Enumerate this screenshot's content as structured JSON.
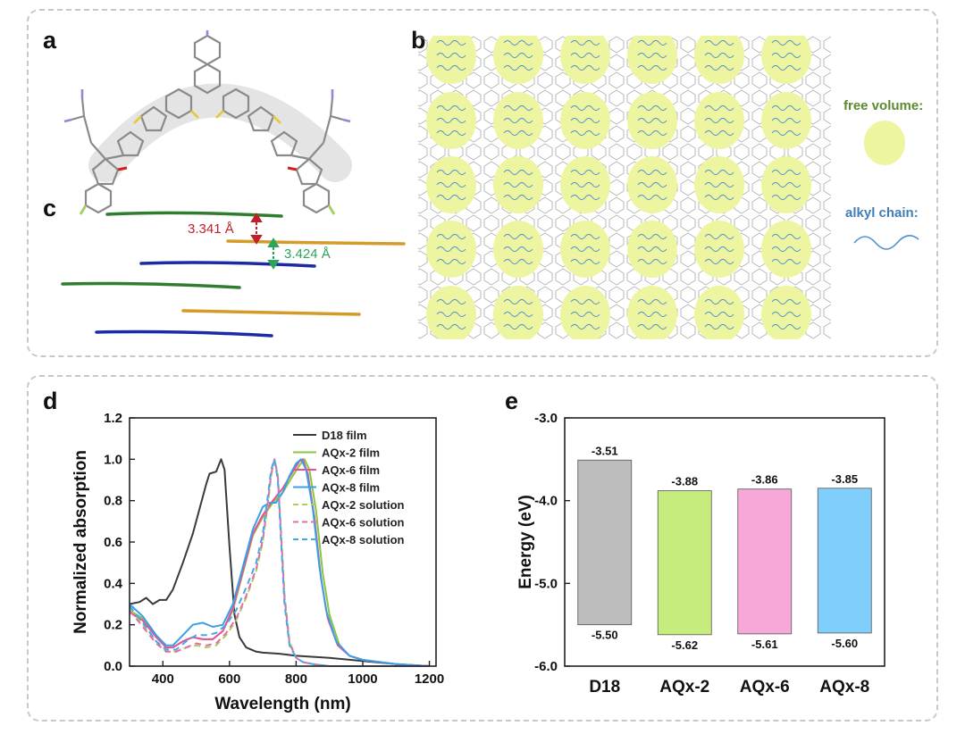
{
  "panels": {
    "a": "a",
    "b": "b",
    "c": "c",
    "d": "d",
    "e": "e"
  },
  "panel_c": {
    "dist1": "3.341 Å",
    "dist2": "3.424 Å"
  },
  "panel_b": {
    "legend_free_volume": "free volume:",
    "legend_alkyl_chain": "alkyl chain:",
    "colors": {
      "free_volume": "#eef5a0",
      "alkyl_chain": "#4f8fcf",
      "free_volume_label": "#5a8a2e",
      "alkyl_label": "#3f7fb8"
    }
  },
  "chart_data": [
    {
      "type": "line",
      "xlabel": "Wavelength (nm)",
      "ylabel": "Normalized absorption",
      "xlim": [
        300,
        1220
      ],
      "ylim": [
        0,
        1.2
      ],
      "xticks": [
        400,
        600,
        800,
        1000,
        1200
      ],
      "yticks": [
        0.0,
        0.2,
        0.4,
        0.6,
        0.8,
        1.0,
        1.2
      ],
      "legend_position": "top-right",
      "series": [
        {
          "name": "D18 film",
          "color": "#3a3a3a",
          "dash": false,
          "x": [
            300,
            330,
            350,
            370,
            390,
            410,
            430,
            460,
            490,
            510,
            530,
            540,
            560,
            575,
            585,
            600,
            615,
            630,
            650,
            680,
            700,
            750,
            800,
            900,
            1000,
            1100,
            1200
          ],
          "y": [
            0.3,
            0.31,
            0.33,
            0.3,
            0.32,
            0.32,
            0.37,
            0.5,
            0.64,
            0.76,
            0.88,
            0.93,
            0.94,
            1.0,
            0.95,
            0.58,
            0.25,
            0.14,
            0.09,
            0.07,
            0.065,
            0.06,
            0.05,
            0.04,
            0.025,
            0.01,
            0.0
          ]
        },
        {
          "name": "AQx-2 film",
          "color": "#8cc63f",
          "dash": false,
          "x": [
            300,
            340,
            380,
            410,
            430,
            460,
            490,
            520,
            550,
            580,
            610,
            640,
            670,
            700,
            730,
            760,
            790,
            810,
            825,
            840,
            860,
            880,
            900,
            930,
            960,
            1000,
            1100,
            1200
          ],
          "y": [
            0.27,
            0.23,
            0.14,
            0.09,
            0.09,
            0.12,
            0.14,
            0.13,
            0.13,
            0.17,
            0.27,
            0.45,
            0.63,
            0.72,
            0.79,
            0.84,
            0.92,
            0.97,
            1.0,
            0.95,
            0.75,
            0.45,
            0.25,
            0.1,
            0.05,
            0.03,
            0.01,
            0.0
          ]
        },
        {
          "name": "AQx-6 film",
          "color": "#e8519a",
          "dash": false,
          "x": [
            300,
            340,
            380,
            410,
            430,
            460,
            490,
            520,
            550,
            580,
            610,
            640,
            670,
            700,
            730,
            760,
            790,
            810,
            820,
            835,
            855,
            875,
            895,
            925,
            960,
            1000,
            1100,
            1200
          ],
          "y": [
            0.26,
            0.22,
            0.14,
            0.09,
            0.09,
            0.12,
            0.14,
            0.13,
            0.13,
            0.17,
            0.28,
            0.46,
            0.64,
            0.73,
            0.8,
            0.86,
            0.94,
            0.99,
            1.0,
            0.93,
            0.72,
            0.42,
            0.23,
            0.1,
            0.05,
            0.03,
            0.01,
            0.0
          ]
        },
        {
          "name": "AQx-8 film",
          "color": "#3aa0e6",
          "dash": false,
          "x": [
            300,
            340,
            380,
            410,
            430,
            460,
            490,
            520,
            550,
            580,
            610,
            640,
            670,
            700,
            720,
            740,
            760,
            780,
            800,
            815,
            830,
            850,
            870,
            890,
            920,
            960,
            1000,
            1100,
            1200
          ],
          "y": [
            0.3,
            0.24,
            0.15,
            0.1,
            0.1,
            0.15,
            0.2,
            0.21,
            0.19,
            0.2,
            0.3,
            0.48,
            0.66,
            0.77,
            0.79,
            0.79,
            0.84,
            0.92,
            0.98,
            1.0,
            0.95,
            0.76,
            0.48,
            0.27,
            0.12,
            0.05,
            0.03,
            0.01,
            0.0
          ]
        },
        {
          "name": "AQx-2 solution",
          "color": "#a8d060",
          "dash": true,
          "x": [
            300,
            340,
            380,
            410,
            440,
            470,
            500,
            530,
            560,
            590,
            620,
            650,
            680,
            700,
            715,
            725,
            735,
            745,
            755,
            765,
            780,
            800,
            820,
            850,
            900,
            1000,
            1200
          ],
          "y": [
            0.28,
            0.2,
            0.12,
            0.07,
            0.07,
            0.09,
            0.1,
            0.09,
            0.1,
            0.15,
            0.22,
            0.33,
            0.46,
            0.6,
            0.78,
            0.92,
            1.0,
            0.93,
            0.65,
            0.35,
            0.12,
            0.04,
            0.02,
            0.01,
            0.0,
            0.0,
            0.0
          ]
        },
        {
          "name": "AQx-6 solution",
          "color": "#e070a8",
          "dash": true,
          "x": [
            300,
            340,
            380,
            410,
            440,
            470,
            500,
            530,
            560,
            590,
            620,
            650,
            680,
            700,
            715,
            725,
            735,
            745,
            755,
            765,
            780,
            800,
            820,
            850,
            900,
            1000,
            1200
          ],
          "y": [
            0.27,
            0.19,
            0.11,
            0.07,
            0.07,
            0.09,
            0.11,
            0.1,
            0.11,
            0.16,
            0.23,
            0.34,
            0.47,
            0.61,
            0.79,
            0.93,
            1.0,
            0.92,
            0.63,
            0.33,
            0.11,
            0.04,
            0.02,
            0.01,
            0.0,
            0.0,
            0.0
          ]
        },
        {
          "name": "AQx-8 solution",
          "color": "#45a8e8",
          "dash": true,
          "x": [
            300,
            340,
            380,
            410,
            440,
            470,
            500,
            530,
            560,
            590,
            620,
            650,
            680,
            700,
            715,
            725,
            735,
            745,
            755,
            765,
            780,
            800,
            820,
            850,
            900,
            1000,
            1200
          ],
          "y": [
            0.29,
            0.21,
            0.12,
            0.08,
            0.08,
            0.12,
            0.15,
            0.15,
            0.16,
            0.2,
            0.27,
            0.38,
            0.5,
            0.64,
            0.82,
            0.95,
            1.0,
            0.9,
            0.6,
            0.3,
            0.1,
            0.04,
            0.02,
            0.01,
            0.0,
            0.0,
            0.0
          ]
        }
      ]
    },
    {
      "type": "bar",
      "xlabel": "",
      "ylabel": "Energy (eV)",
      "ylim": [
        -6.0,
        -3.0
      ],
      "yticks": [
        -6.0,
        -5.0,
        -4.0,
        -3.0
      ],
      "categories": [
        "D18",
        "AQx-2",
        "AQx-6",
        "AQx-8"
      ],
      "lumo": [
        -3.51,
        -3.88,
        -3.86,
        -3.85
      ],
      "homo": [
        -5.5,
        -5.62,
        -5.61,
        -5.6
      ],
      "lumo_labels": [
        "-3.51",
        "-3.88",
        "-3.86",
        "-3.85"
      ],
      "homo_labels": [
        "-5.50",
        "-5.62",
        "-5.61",
        "-5.60"
      ],
      "colors": [
        "#bdbdbd",
        "#c6ec7e",
        "#f8a8d8",
        "#7fcefb"
      ],
      "ytick_labels": [
        "-6.0",
        "-5.0",
        "-4.0",
        "-3.0"
      ]
    }
  ]
}
